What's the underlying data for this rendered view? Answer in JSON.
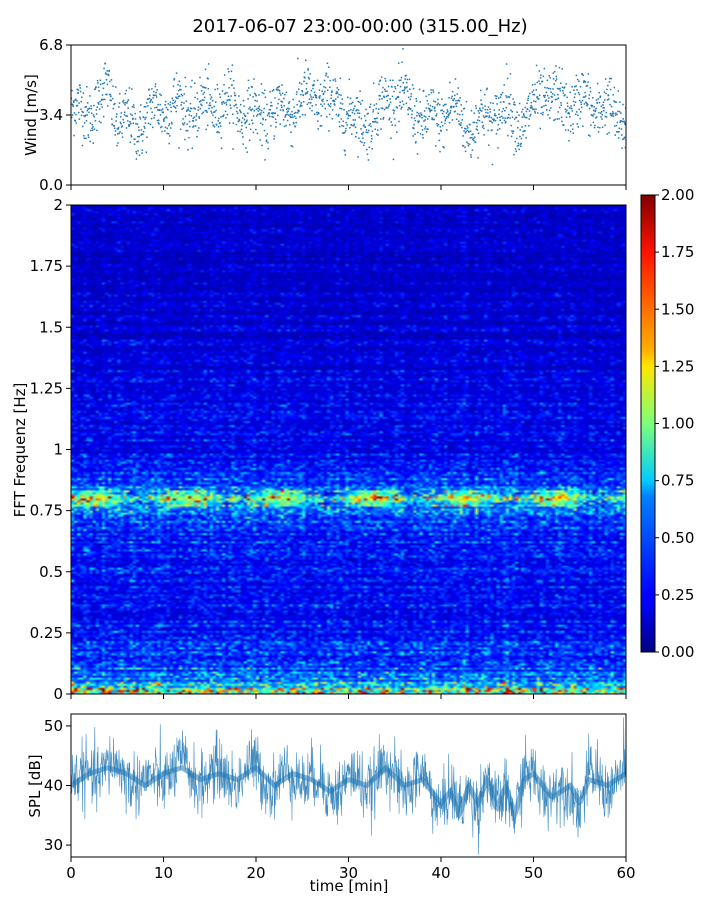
{
  "title": "2017-06-07 23:00-00:00 (315.00_Hz)",
  "chart_data": [
    {
      "panel": "wind",
      "type": "scatter",
      "ylabel": "Wind [m/s]",
      "ylim": [
        0.0,
        6.8
      ],
      "yticks": [
        "0.0",
        "3.4",
        "6.8"
      ],
      "xlim": [
        0,
        60
      ],
      "marker_color": "#1f77b4",
      "approx_series": {
        "x_min": [
          0,
          3,
          4,
          5,
          7,
          9,
          11,
          13,
          17,
          20,
          24,
          26,
          29,
          31,
          33,
          35,
          36,
          39,
          41,
          43,
          45,
          47,
          49,
          51,
          53,
          55,
          57,
          59,
          60
        ],
        "mean_m_s": [
          3.5,
          3.8,
          4.8,
          3.2,
          2.8,
          3.6,
          3.9,
          3.6,
          4.0,
          3.3,
          3.8,
          4.3,
          3.9,
          3.0,
          3.4,
          4.6,
          4.0,
          3.0,
          3.8,
          2.8,
          3.3,
          3.8,
          2.9,
          4.5,
          3.9,
          4.0,
          3.8,
          3.4,
          3.1
        ],
        "spread_m_s": 1.0
      }
    },
    {
      "panel": "spectrogram",
      "type": "heatmap",
      "ylabel": "FFT Frequenz [Hz]",
      "ylim": [
        0,
        2
      ],
      "yticks": [
        "0",
        "0.25",
        "0.5",
        "0.75",
        "1",
        "1.25",
        "1.5",
        "1.75",
        "2"
      ],
      "xlim": [
        0,
        60
      ],
      "colormap": "jet",
      "colorbar": {
        "range": [
          0.0,
          2.0
        ],
        "ticks": [
          "0.00",
          "0.25",
          "0.50",
          "0.75",
          "1.00",
          "1.25",
          "1.50",
          "1.75",
          "2.00"
        ]
      },
      "approx_profile": {
        "freq_hz": [
          0.0,
          0.01,
          0.03,
          0.05,
          0.1,
          0.2,
          0.4,
          0.6,
          0.7,
          0.76,
          0.8,
          0.84,
          0.9,
          1.0,
          1.2,
          1.4,
          1.6,
          1.8,
          2.0
        ],
        "mean_value": [
          1.6,
          1.3,
          0.9,
          0.6,
          0.45,
          0.35,
          0.3,
          0.32,
          0.4,
          0.6,
          1.05,
          0.5,
          0.33,
          0.28,
          0.24,
          0.21,
          0.19,
          0.17,
          0.16
        ]
      }
    },
    {
      "panel": "spl",
      "type": "area",
      "ylabel": "SPL [dB]",
      "ylim": [
        28,
        52
      ],
      "yticks": [
        "30",
        "40",
        "50"
      ],
      "xlabel": "time [min]",
      "xlim": [
        0,
        60
      ],
      "xticks": [
        "0",
        "10",
        "20",
        "30",
        "40",
        "50",
        "60"
      ],
      "line_color": "#1f77b4",
      "approx_series": {
        "x_min": [
          0,
          2,
          4,
          6,
          8,
          10,
          12,
          14,
          16,
          18,
          20,
          22,
          24,
          26,
          28,
          30,
          32,
          34,
          36,
          38,
          40,
          41,
          42,
          43,
          44,
          45,
          46,
          47,
          48,
          49,
          50,
          52,
          54,
          55,
          56,
          58,
          60
        ],
        "mean_db": [
          40,
          42,
          43,
          42,
          40,
          42,
          43,
          41,
          42,
          41,
          43,
          40,
          42,
          41,
          39,
          41,
          40,
          43,
          40,
          41,
          37,
          39,
          35,
          40,
          37,
          41,
          36,
          40,
          35,
          41,
          42,
          38,
          40,
          37,
          41,
          40,
          42
        ],
        "spread_db": 3.5
      }
    }
  ]
}
